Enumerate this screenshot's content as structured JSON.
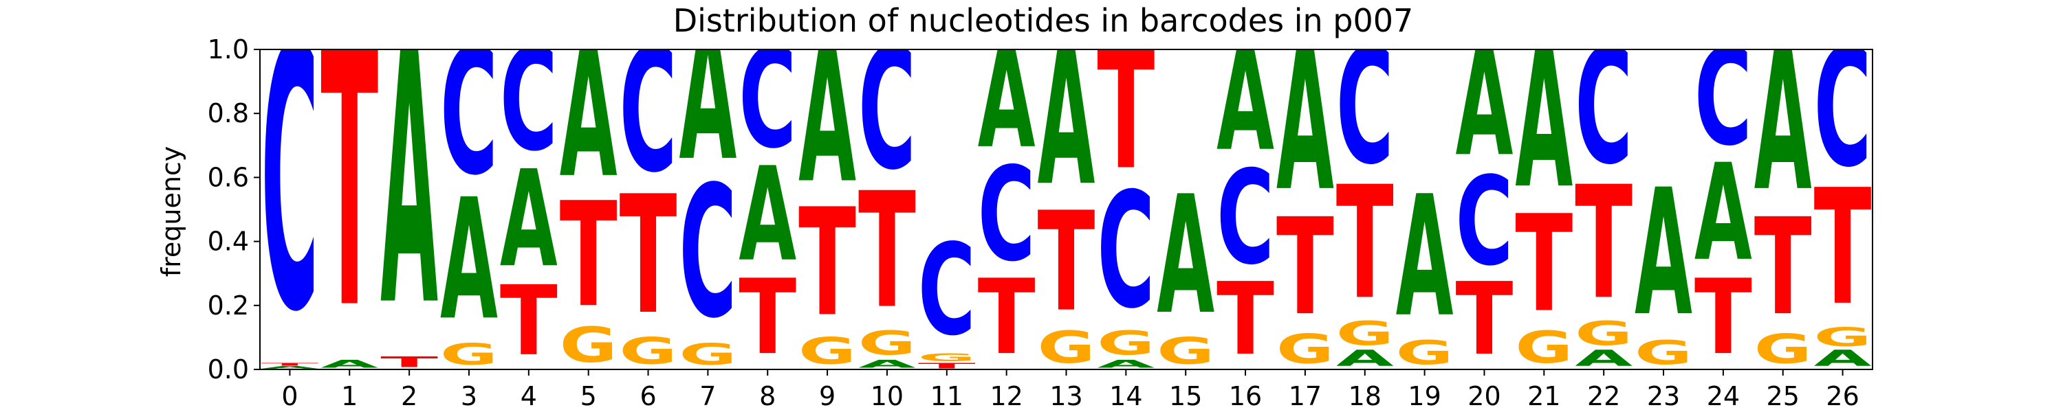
{
  "chart_data": {
    "type": "sequence-logo",
    "title": "Distribution of nucleotides in barcodes in p007",
    "xlabel": "",
    "ylabel": "frequency",
    "ylim": [
      0,
      1.0
    ],
    "y_ticks": [
      "0.0",
      "0.2",
      "0.4",
      "0.6",
      "0.8",
      "1.0"
    ],
    "x_ticks": [
      "0",
      "1",
      "2",
      "3",
      "4",
      "5",
      "6",
      "7",
      "8",
      "9",
      "10",
      "11",
      "12",
      "13",
      "14",
      "15",
      "16",
      "17",
      "18",
      "19",
      "20",
      "21",
      "22",
      "23",
      "24",
      "25",
      "26"
    ],
    "grid": false,
    "legend": "none",
    "series": [
      {
        "name": "A",
        "color": "#008000"
      },
      {
        "name": "C",
        "color": "#0000ff"
      },
      {
        "name": "G",
        "color": "#ffa500"
      },
      {
        "name": "T",
        "color": "#ff0000"
      }
    ],
    "positions": [
      {
        "x": 0,
        "A": 0.01,
        "C": 0.98,
        "G": 0.0,
        "T": 0.01
      },
      {
        "x": 1,
        "A": 0.03,
        "C": 0.0,
        "G": 0.0,
        "T": 0.97
      },
      {
        "x": 2,
        "A": 0.96,
        "C": 0.0,
        "G": 0.0,
        "T": 0.04
      },
      {
        "x": 3,
        "A": 0.45,
        "C": 0.47,
        "G": 0.08,
        "T": 0.0
      },
      {
        "x": 4,
        "A": 0.36,
        "C": 0.38,
        "G": 0.0,
        "T": 0.26
      },
      {
        "x": 5,
        "A": 0.48,
        "C": 0.0,
        "G": 0.13,
        "T": 0.39
      },
      {
        "x": 6,
        "A": 0.0,
        "C": 0.46,
        "G": 0.1,
        "T": 0.44
      },
      {
        "x": 7,
        "A": 0.5,
        "C": 0.49,
        "G": 0.08,
        "T": 0.0
      },
      {
        "x": 8,
        "A": 0.35,
        "C": 0.37,
        "G": 0.0,
        "T": 0.28
      },
      {
        "x": 9,
        "A": 0.5,
        "C": 0.0,
        "G": 0.1,
        "T": 0.4
      },
      {
        "x": 10,
        "A": 0.03,
        "C": 0.45,
        "G": 0.09,
        "T": 0.43
      },
      {
        "x": 11,
        "A": 0.0,
        "C": 0.34,
        "G": 0.03,
        "T": 0.02
      },
      {
        "x": 12,
        "A": 0.37,
        "C": 0.35,
        "G": 0.0,
        "T": 0.28
      },
      {
        "x": 13,
        "A": 0.51,
        "C": 0.0,
        "G": 0.12,
        "T": 0.37
      },
      {
        "x": 14,
        "A": 0.03,
        "C": 0.43,
        "G": 0.09,
        "T": 0.45
      },
      {
        "x": 15,
        "A": 0.44,
        "C": 0.0,
        "G": 0.1,
        "T": 0.0
      },
      {
        "x": 16,
        "A": 0.38,
        "C": 0.35,
        "G": 0.0,
        "T": 0.27
      },
      {
        "x": 17,
        "A": 0.53,
        "C": 0.0,
        "G": 0.11,
        "T": 0.36
      },
      {
        "x": 18,
        "A": 0.06,
        "C": 0.43,
        "G": 0.09,
        "T": 0.42
      },
      {
        "x": 19,
        "A": 0.45,
        "C": 0.0,
        "G": 0.09,
        "T": 0.0
      },
      {
        "x": 20,
        "A": 0.4,
        "C": 0.33,
        "G": 0.0,
        "T": 0.27
      },
      {
        "x": 21,
        "A": 0.52,
        "C": 0.0,
        "G": 0.12,
        "T": 0.36
      },
      {
        "x": 22,
        "A": 0.06,
        "C": 0.43,
        "G": 0.09,
        "T": 0.42
      },
      {
        "x": 23,
        "A": 0.47,
        "C": 0.0,
        "G": 0.09,
        "T": 0.0
      },
      {
        "x": 24,
        "A": 0.36,
        "C": 0.36,
        "G": 0.0,
        "T": 0.28
      },
      {
        "x": 25,
        "A": 0.53,
        "C": 0.0,
        "G": 0.11,
        "T": 0.36
      },
      {
        "x": 26,
        "A": 0.06,
        "C": 0.44,
        "G": 0.07,
        "T": 0.43
      }
    ]
  }
}
